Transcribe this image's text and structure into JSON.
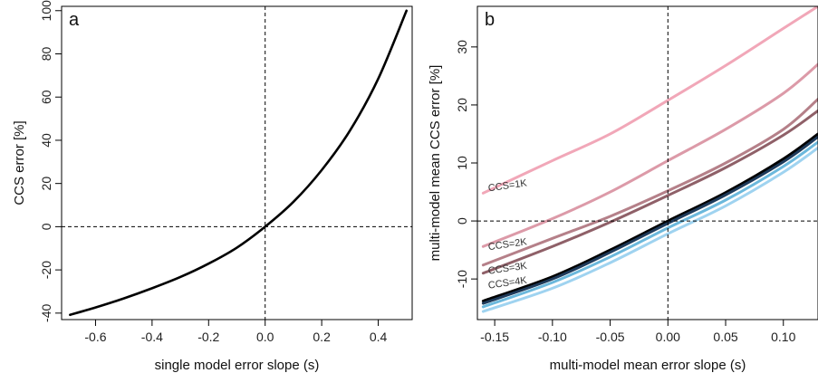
{
  "chart_data": [
    {
      "type": "line",
      "panel": "a",
      "xlabel": "single model error slope (s)",
      "ylabel": "CCS error [%]",
      "xlim": [
        -0.72,
        0.52
      ],
      "ylim": [
        -43,
        102
      ],
      "xticks": [
        "-0.6",
        "-0.4",
        "-0.2",
        "0.0",
        "0.2",
        "0.4"
      ],
      "xtick_values": [
        -0.6,
        -0.4,
        -0.2,
        0.0,
        0.2,
        0.4
      ],
      "yticks": [
        "-40",
        "-20",
        "0",
        "20",
        "40",
        "60",
        "80",
        "100"
      ],
      "ytick_values": [
        -40,
        -20,
        0,
        20,
        40,
        60,
        80,
        100
      ],
      "reference_lines": {
        "x": 0,
        "y": 0
      },
      "grid": false,
      "series": [
        {
          "color": "#000000",
          "x": [
            -0.69,
            -0.6,
            -0.5,
            -0.4,
            -0.3,
            -0.2,
            -0.1,
            0.0,
            0.1,
            0.2,
            0.3,
            0.4,
            0.5
          ],
          "y": [
            -40.8,
            -37.4,
            -33.2,
            -28.5,
            -23.3,
            -17.1,
            -9.7,
            0.0,
            11.5,
            26.2,
            44.5,
            68.5,
            100.0
          ]
        }
      ]
    },
    {
      "type": "line",
      "panel": "b",
      "xlabel": "multi-model mean error slope (s)",
      "ylabel": "multi-model mean CCS error [%]",
      "xlim": [
        -0.165,
        0.13
      ],
      "ylim": [
        -17,
        37
      ],
      "xticks": [
        "-0.15",
        "-0.10",
        "-0.05",
        "0.00",
        "0.05",
        "0.10"
      ],
      "xtick_values": [
        -0.15,
        -0.1,
        -0.05,
        0.0,
        0.05,
        0.1
      ],
      "yticks": [
        "-10",
        "0",
        "10",
        "20",
        "30"
      ],
      "ytick_values": [
        -10,
        0,
        10,
        20,
        30
      ],
      "reference_lines": {
        "x": 0,
        "y": 0
      },
      "grid": false,
      "series": [
        {
          "label": "CCS=1K",
          "color": "#f1a7b8",
          "x": [
            -0.16,
            -0.1,
            -0.05,
            0.0,
            0.05,
            0.1,
            0.13
          ],
          "y": [
            4.8,
            10.4,
            15.0,
            20.8,
            26.8,
            33.2,
            37.0
          ]
        },
        {
          "label": "CCS=2K",
          "color": "#dc9aa8",
          "x": [
            -0.16,
            -0.1,
            -0.05,
            0.0,
            0.05,
            0.1,
            0.13
          ],
          "y": [
            -4.4,
            0.4,
            5.0,
            10.4,
            15.8,
            22.0,
            27.0
          ]
        },
        {
          "label": "CCS=3K",
          "color": "#b58089",
          "x": [
            -0.16,
            -0.1,
            -0.05,
            0.0,
            0.05,
            0.1,
            0.13
          ],
          "y": [
            -7.6,
            -3.0,
            0.8,
            5.2,
            10.0,
            15.8,
            21.0
          ]
        },
        {
          "label": "CCS=4K",
          "color": "#8f6068",
          "x": [
            -0.16,
            -0.1,
            -0.05,
            0.0,
            0.05,
            0.1,
            0.13
          ],
          "y": [
            -9.0,
            -4.4,
            -0.2,
            4.4,
            9.2,
            14.8,
            19.0
          ]
        },
        {
          "color": "#000000",
          "x": [
            -0.16,
            -0.1,
            -0.05,
            0.0,
            0.05,
            0.1,
            0.13
          ],
          "y": [
            -13.8,
            -9.6,
            -5.0,
            0.0,
            4.9,
            10.7,
            15.0
          ]
        },
        {
          "color": "#1e3a5a",
          "x": [
            -0.16,
            -0.1,
            -0.05,
            0.0,
            0.05,
            0.1,
            0.13
          ],
          "y": [
            -14.2,
            -10.0,
            -5.4,
            -0.4,
            4.5,
            10.2,
            14.5
          ]
        },
        {
          "color": "#6bb8dc",
          "x": [
            -0.16,
            -0.1,
            -0.05,
            0.0,
            0.05,
            0.1,
            0.13
          ],
          "y": [
            -14.8,
            -10.6,
            -6.2,
            -1.2,
            3.6,
            9.4,
            13.6
          ]
        },
        {
          "color": "#9fd3f0",
          "x": [
            -0.16,
            -0.1,
            -0.05,
            0.0,
            0.05,
            0.1,
            0.13
          ],
          "y": [
            -15.6,
            -11.6,
            -7.2,
            -2.2,
            2.6,
            8.4,
            12.6
          ]
        }
      ]
    }
  ]
}
